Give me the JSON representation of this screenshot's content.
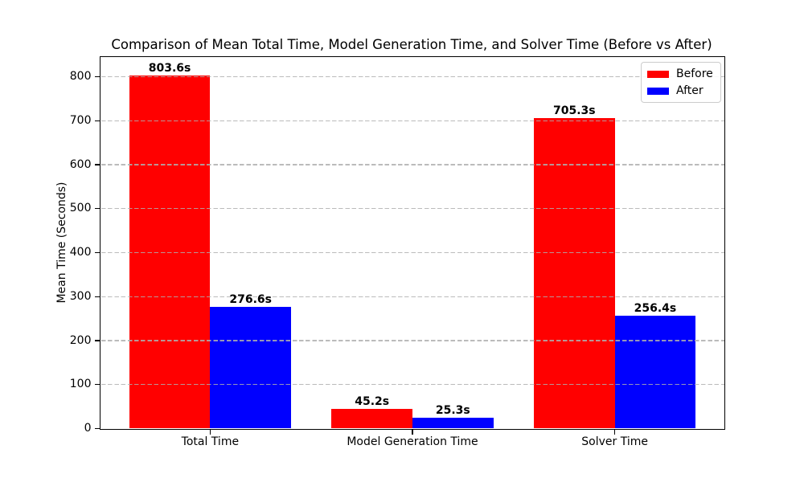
{
  "chart_data": {
    "type": "bar",
    "title": "Comparison of Mean Total Time, Model Generation Time, and Solver Time (Before vs After)",
    "xlabel": "",
    "ylabel": "Mean Time (Seconds)",
    "categories": [
      "Total Time",
      "Model Generation Time",
      "Solver Time"
    ],
    "series": [
      {
        "name": "Before",
        "color": "#ff0000",
        "values": [
          803.6,
          45.2,
          705.3
        ],
        "labels": [
          "803.6s",
          "45.2s",
          "705.3s"
        ]
      },
      {
        "name": "After",
        "color": "#0000ff",
        "values": [
          276.6,
          25.3,
          256.4
        ],
        "labels": [
          "276.6s",
          "25.3s",
          "256.4s"
        ]
      }
    ],
    "ylim": [
      0,
      844
    ],
    "yticks": [
      0,
      100,
      200,
      300,
      400,
      500,
      600,
      700,
      800
    ],
    "grid": {
      "axis": "y",
      "style": "dashed",
      "color": "#b0b0b0"
    },
    "legend": {
      "position": "upper-right",
      "entries": [
        "Before",
        "After"
      ]
    },
    "background": "#ffffff"
  }
}
